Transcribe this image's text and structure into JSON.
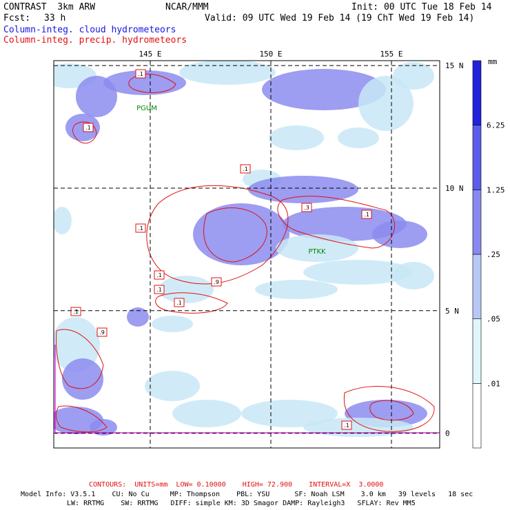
{
  "header": {
    "model": "CONTRAST  3km ARW",
    "org": "NCAR/MMM",
    "init": "Init: 00 UTC Tue 18 Feb 14",
    "fcst_label": "Fcst:",
    "fcst_value": "33 h",
    "valid": "Valid: 09 UTC Wed 19 Feb 14 (19 ChT Wed 19 Feb 14)",
    "field1": "Column-integ. cloud hydrometeors",
    "field2": "Column-integ. precip. hydrometeors"
  },
  "chart_data": {
    "type": "heatmap",
    "x_axis": {
      "ticks": [
        "145 E",
        "150 E",
        "155 E"
      ],
      "values": [
        145,
        150,
        155
      ],
      "range": [
        141,
        157
      ]
    },
    "y_axis": {
      "ticks": [
        "15 N",
        "10 N",
        "5 N",
        "0"
      ],
      "values": [
        15,
        10,
        5,
        0
      ],
      "range": [
        -0.6,
        15.2
      ]
    },
    "grid": true,
    "colorbar": {
      "unit": "mm",
      "levels": [
        "6.25",
        "1.25",
        ".25",
        ".05",
        ".01"
      ],
      "colors": [
        "#ffffff",
        "#e0f6fb",
        "#b8c8f6",
        "#8888f0",
        "#5c5cea",
        "#2222dd"
      ]
    },
    "stations": [
      "PGUM",
      "PTKK"
    ],
    "contour_labels": [
      ".1",
      ".1",
      ".1",
      ".1",
      ".9",
      ".1",
      ".1",
      ".9",
      ".3",
      ".1",
      ".1",
      ".1",
      ".1"
    ],
    "colors": {
      "cloud": "#8c8cf0",
      "cloud_light": "#c8e8f6",
      "contour": "#e01010",
      "station": "#008800",
      "coast": "#e000e0"
    }
  },
  "footer": {
    "contours": "CONTOURS:  UNITS=mm  LOW= 0.10000    HIGH= 72.900    INTERVAL=X  3.0000",
    "model_info": "Model Info: V3.5.1    CU: No Cu     MP: Thompson    PBL: YSU      SF: Noah LSM    3.0 km   39 levels   18 sec",
    "model_info2": "LW: RRTMG    SW: RRTMG   DIFF: simple KM: 3D Smagor DAMP: Rayleigh3   SFLAY: Rev MM5"
  }
}
